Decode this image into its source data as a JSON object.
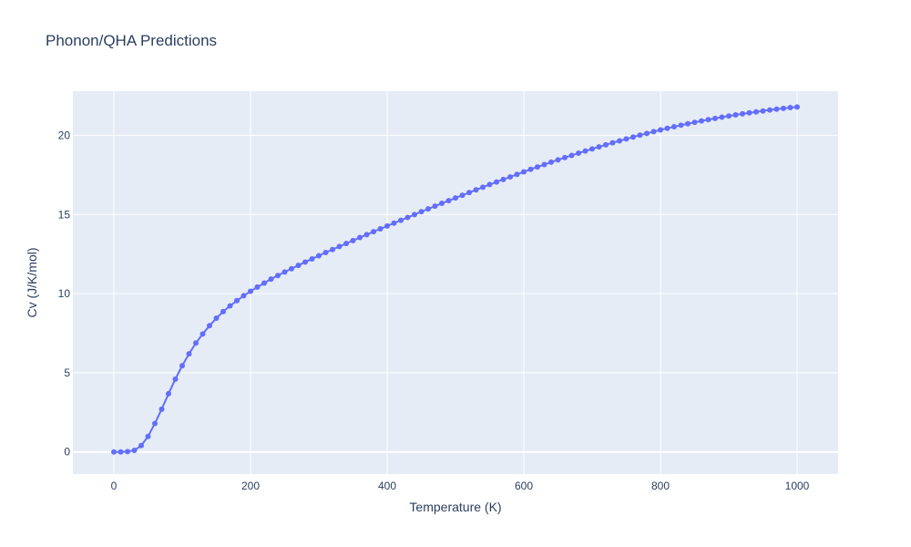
{
  "chart_data": {
    "type": "line",
    "title": "Phonon/QHA Predictions",
    "xlabel": "Temperature (K)",
    "ylabel": "Cv (J/K/mol)",
    "xlim": [
      -60,
      1060
    ],
    "ylim": [
      -1.4,
      22.8
    ],
    "xticks": [
      0,
      200,
      400,
      600,
      800,
      1000
    ],
    "yticks": [
      0,
      5,
      10,
      15,
      20
    ],
    "grid": true,
    "legend": "none",
    "colors": {
      "plot_bg": "#e5ecf6",
      "grid": "#ffffff",
      "series": "#636efa"
    },
    "series": [
      {
        "x": [
          0,
          10,
          20,
          30,
          40,
          50,
          60,
          70,
          80,
          90,
          100,
          110,
          120,
          130,
          140,
          150,
          160,
          170,
          180,
          190,
          200,
          210,
          220,
          230,
          240,
          250,
          260,
          270,
          280,
          290,
          300,
          310,
          320,
          330,
          340,
          350,
          360,
          370,
          380,
          390,
          400,
          410,
          420,
          430,
          440,
          450,
          460,
          470,
          480,
          490,
          500,
          510,
          520,
          530,
          540,
          550,
          560,
          570,
          580,
          590,
          600,
          610,
          620,
          630,
          640,
          650,
          660,
          670,
          680,
          690,
          700,
          710,
          720,
          730,
          740,
          750,
          760,
          770,
          780,
          790,
          800,
          810,
          820,
          830,
          840,
          850,
          860,
          870,
          880,
          890,
          900,
          910,
          920,
          930,
          940,
          950,
          960,
          970,
          980,
          990,
          1000
        ],
        "y": [
          0,
          0,
          0.02,
          0.1,
          0.4,
          0.98,
          1.8,
          2.7,
          3.68,
          4.6,
          5.45,
          6.2,
          6.88,
          7.45,
          7.98,
          8.45,
          8.87,
          9.23,
          9.56,
          9.87,
          10.15,
          10.42,
          10.67,
          10.92,
          11.15,
          11.37,
          11.58,
          11.79,
          12.0,
          12.2,
          12.4,
          12.6,
          12.79,
          12.98,
          13.17,
          13.36,
          13.55,
          13.73,
          13.92,
          14.1,
          14.28,
          14.46,
          14.64,
          14.82,
          15.0,
          15.18,
          15.36,
          15.53,
          15.71,
          15.88,
          16.05,
          16.22,
          16.39,
          16.56,
          16.73,
          16.9,
          17.06,
          17.22,
          17.38,
          17.54,
          17.7,
          17.86,
          18.01,
          18.16,
          18.31,
          18.46,
          18.6,
          18.74,
          18.88,
          19.02,
          19.15,
          19.28,
          19.41,
          19.54,
          19.66,
          19.78,
          19.9,
          20.02,
          20.13,
          20.24,
          20.35,
          20.45,
          20.55,
          20.65,
          20.74,
          20.83,
          20.92,
          21.0,
          21.08,
          21.16,
          21.23,
          21.3,
          21.37,
          21.43,
          21.49,
          21.55,
          21.61,
          21.66,
          21.71,
          21.76,
          21.8
        ]
      }
    ]
  }
}
